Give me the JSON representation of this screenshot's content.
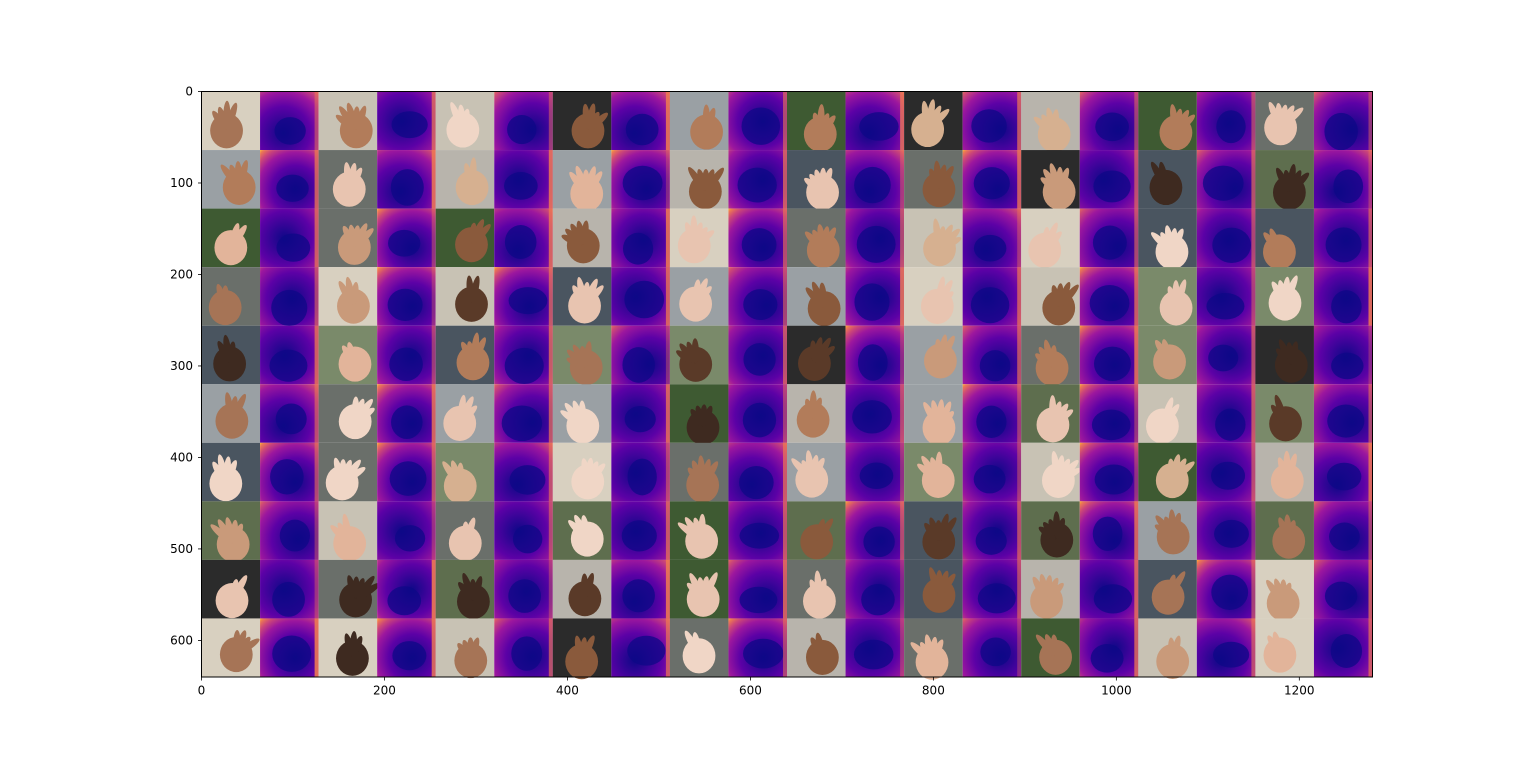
{
  "figure": {
    "title": "",
    "description_kind": "image grid of hand photos alternating with plasma-colormap depth maps"
  },
  "image_grid": {
    "rows": 10,
    "cols": 20,
    "cell_size_data_units": 64,
    "column_kinds": [
      "photo",
      "depth_map"
    ],
    "colormap": "plasma",
    "colormap_stops": [
      "#0d0887",
      "#5c01a6",
      "#9c179e",
      "#cc4778",
      "#ed7953",
      "#fdb42f",
      "#f0f921"
    ],
    "skin_tones": [
      "#c99a7a",
      "#e8c4b0",
      "#8a5a3c",
      "#5a3a28",
      "#d6b090",
      "#b27c5a",
      "#f0d6c6",
      "#3e2a20",
      "#a67456",
      "#e2b49a"
    ],
    "backgrounds": [
      "#6a6f6a",
      "#3e5a32",
      "#9aa0a4",
      "#c8c2b4",
      "#2b2b2b",
      "#7a8a6a",
      "#b8b4ac",
      "#4a5560",
      "#d8d0c0",
      "#5e6e4e"
    ]
  },
  "chart_data": {
    "type": "image",
    "xlim": [
      0,
      1280
    ],
    "ylim": [
      640,
      0
    ],
    "x_ticks": [
      0,
      200,
      400,
      600,
      800,
      1000,
      1200
    ],
    "y_ticks": [
      0,
      100,
      200,
      300,
      400,
      500,
      600
    ],
    "x_tick_labels": [
      "0",
      "200",
      "400",
      "600",
      "800",
      "1000",
      "1200"
    ],
    "y_tick_labels": [
      "0",
      "100",
      "200",
      "300",
      "400",
      "500",
      "600"
    ],
    "xlabel": "",
    "ylabel": "",
    "title": ""
  }
}
